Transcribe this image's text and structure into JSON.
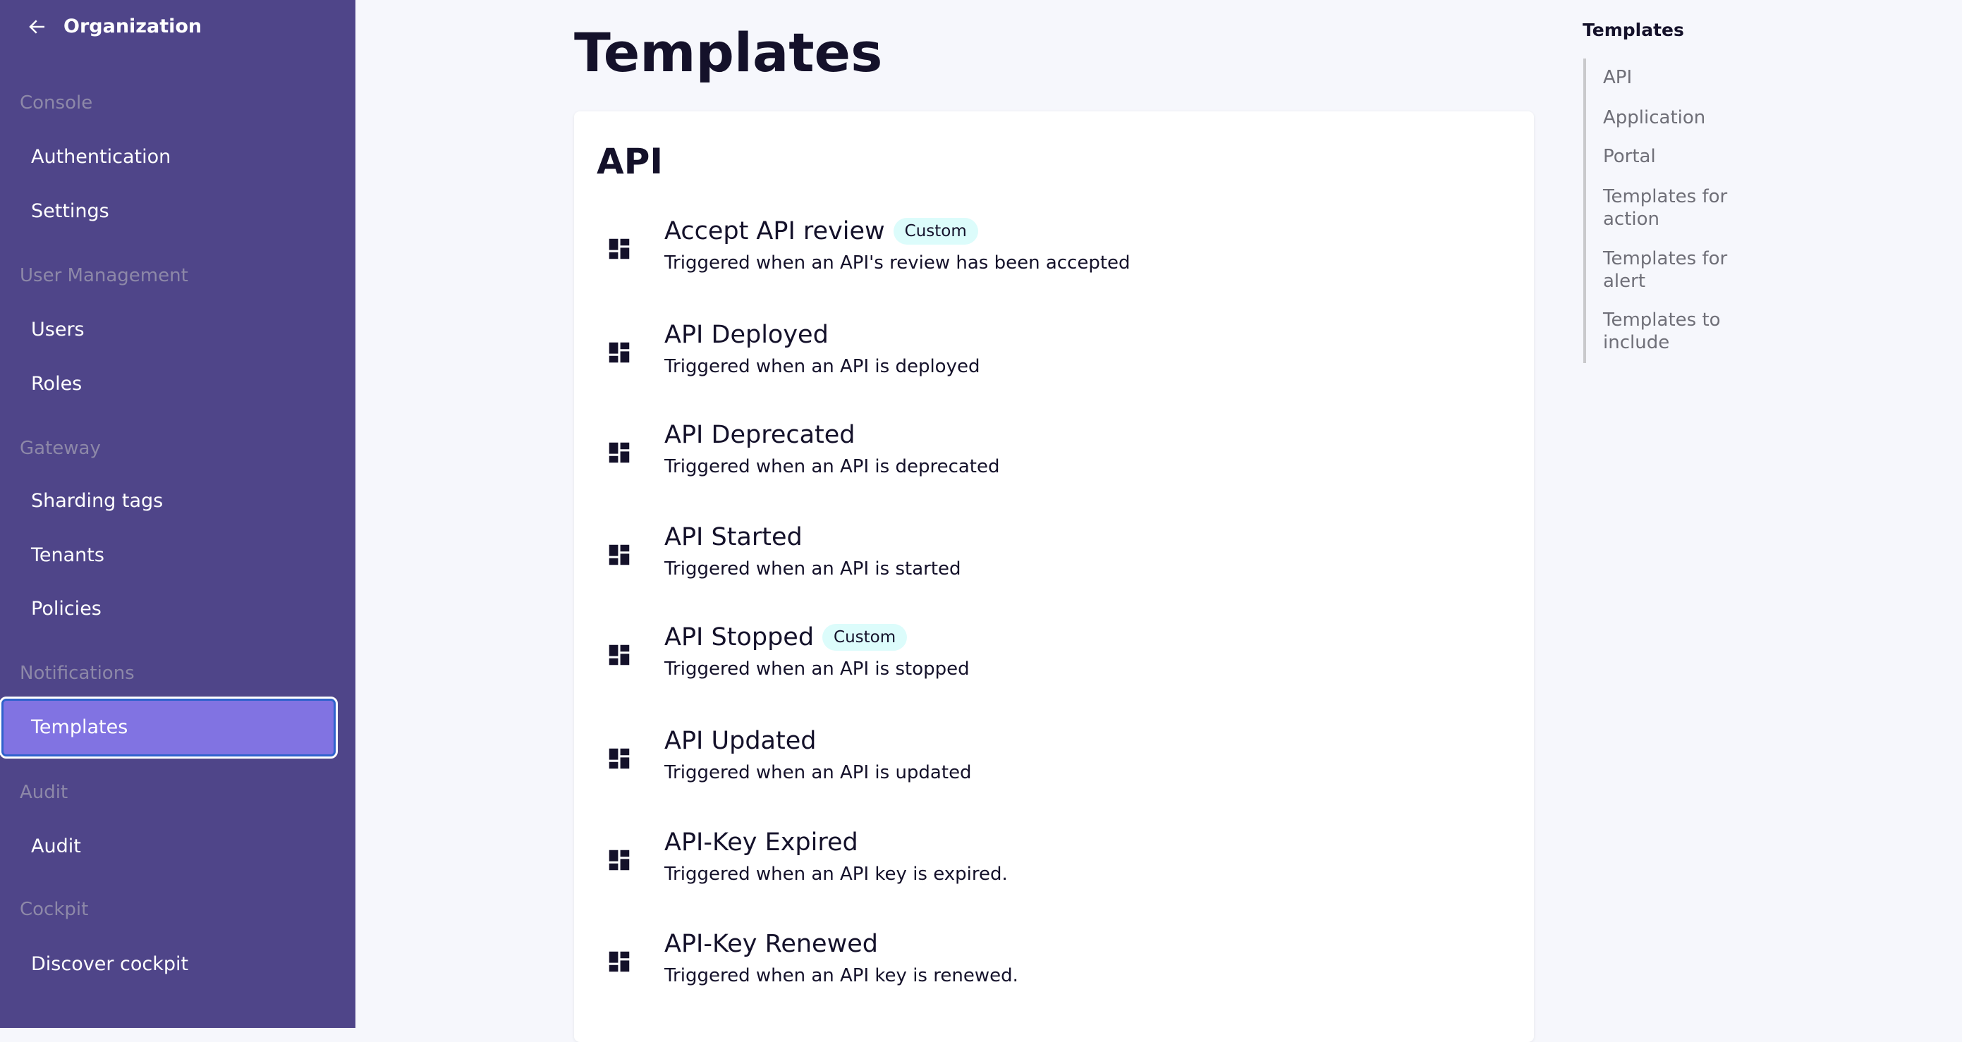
{
  "sidebar": {
    "back_label": "Organization",
    "groups": [
      {
        "label": "Console",
        "items": [
          "Authentication",
          "Settings"
        ]
      },
      {
        "label": "User Management",
        "items": [
          "Users",
          "Roles"
        ]
      },
      {
        "label": "Gateway",
        "items": [
          "Sharding tags",
          "Tenants",
          "Policies"
        ]
      },
      {
        "label": "Notifications",
        "items": [
          "Templates"
        ]
      },
      {
        "label": "Audit",
        "items": [
          "Audit"
        ]
      },
      {
        "label": "Cockpit",
        "items": [
          "Discover cockpit"
        ]
      }
    ],
    "active_item": "Templates",
    "colors": {
      "background": "#4f4589",
      "active": "#8173e2"
    }
  },
  "main": {
    "title": "Templates",
    "section": "API",
    "items": [
      {
        "title": "Accept API review",
        "badge": "Custom",
        "description": "Triggered when an API's review has been accepted"
      },
      {
        "title": "API Deployed",
        "description": "Triggered when an API is deployed"
      },
      {
        "title": "API Deprecated",
        "description": "Triggered when an API is deprecated"
      },
      {
        "title": "API Started",
        "description": "Triggered when an API is started"
      },
      {
        "title": "API Stopped",
        "badge": "Custom",
        "description": "Triggered when an API is stopped"
      },
      {
        "title": "API Updated",
        "description": "Triggered when an API is updated"
      },
      {
        "title": "API-Key Expired",
        "description": "Triggered when an API key is expired."
      },
      {
        "title": "API-Key Renewed",
        "description": "Triggered when an API key is renewed."
      }
    ],
    "item_icon": "dashboard-icon"
  },
  "toc": {
    "title": "Templates",
    "items": [
      "API",
      "Application",
      "Portal",
      "Templates for action",
      "Templates for alert",
      "Templates to include"
    ]
  }
}
